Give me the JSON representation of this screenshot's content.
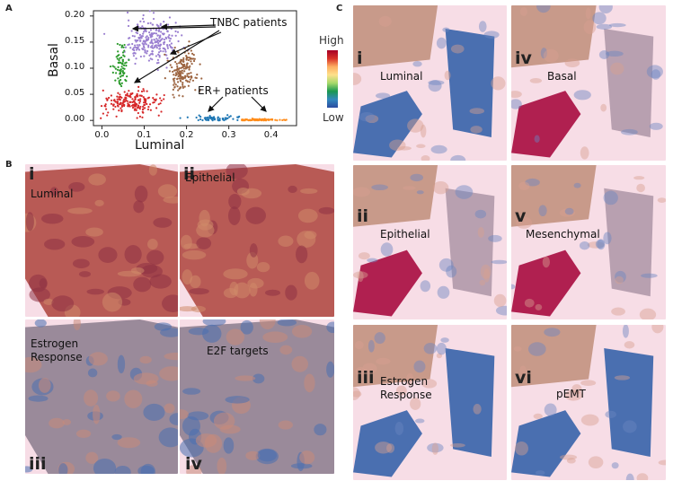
{
  "panel_labels": {
    "a": "A",
    "b": "B",
    "c": "C"
  },
  "chart_data": {
    "type": "scatter",
    "xlabel": "Luminal",
    "ylabel": "Basal",
    "xlim": [
      -0.02,
      0.46
    ],
    "ylim": [
      -0.01,
      0.21
    ],
    "xticks": [
      "0.0",
      "0.1",
      "0.2",
      "0.3",
      "0.4"
    ],
    "xtick_values": [
      0.0,
      0.1,
      0.2,
      0.3,
      0.4
    ],
    "yticks": [
      "0.00",
      "0.05",
      "0.10",
      "0.15",
      "0.20"
    ],
    "ytick_values": [
      0.0,
      0.05,
      0.1,
      0.15,
      0.2
    ],
    "annotations": [
      {
        "text": "TNBC patients",
        "x": 0.26,
        "y": 0.172
      },
      {
        "text": "ER+ patients",
        "x": 0.34,
        "y": 0.05
      }
    ],
    "series": [
      {
        "color": "#9a7fd0",
        "cx": 0.115,
        "cy": 0.155,
        "sx": 0.03,
        "sy": 0.022,
        "n": 260
      },
      {
        "color": "#2a9a2a",
        "cx": 0.045,
        "cy": 0.105,
        "sx": 0.008,
        "sy": 0.02,
        "n": 70
      },
      {
        "color": "#9c6440",
        "cx": 0.19,
        "cy": 0.095,
        "sx": 0.018,
        "sy": 0.022,
        "n": 170
      },
      {
        "color": "#d62728",
        "cx": 0.075,
        "cy": 0.035,
        "sx": 0.035,
        "sy": 0.012,
        "n": 190
      },
      {
        "color": "#1f77b4",
        "cx": 0.27,
        "cy": 0.003,
        "sx": 0.03,
        "sy": 0.003,
        "n": 60
      },
      {
        "color": "#ff8c1a",
        "cx": 0.37,
        "cy": 0.001,
        "sx": 0.03,
        "sy": 0.001,
        "n": 70
      }
    ]
  },
  "colorbar": {
    "high": "High",
    "low": "Low"
  },
  "panel_b": {
    "tiles": [
      {
        "numeral": "i",
        "label": "Luminal"
      },
      {
        "numeral": "ii",
        "label": "Epithelial"
      },
      {
        "numeral": "iii",
        "label": "Estrogen Response"
      },
      {
        "numeral": "iv",
        "label": "E2F targets"
      }
    ]
  },
  "panel_c": {
    "tiles": [
      {
        "numeral": "i",
        "label": "Luminal"
      },
      {
        "numeral": "iv",
        "label": "Basal"
      },
      {
        "numeral": "ii",
        "label": "Epithelial"
      },
      {
        "numeral": "v",
        "label": "Mesenchymal"
      },
      {
        "numeral": "iii",
        "label": "Estrogen Response"
      },
      {
        "numeral": "vi",
        "label": "pEMT"
      }
    ]
  },
  "colors": {
    "tissue_bg": "#f7dde6",
    "warm": "#b85a55",
    "cool": "#4a6fb0",
    "hot": "#b02050"
  }
}
